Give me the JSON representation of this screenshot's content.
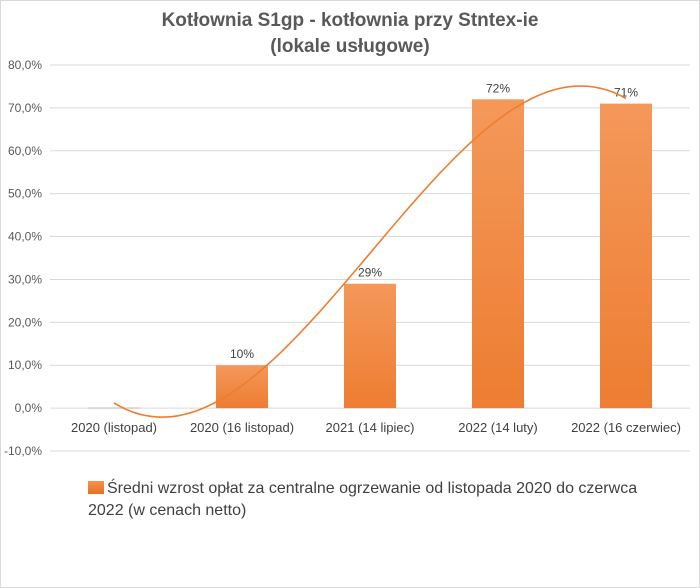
{
  "chart_data": {
    "type": "bar",
    "title": [
      "Kotłownia S1gp - kotłownia przy Stntex-ie",
      "(lokale usługowe)"
    ],
    "categories": [
      "2020 (listopad)",
      "2020 (16 listopad)",
      "2021 (14 lipiec)",
      "2022 (14 luty)",
      "2022 (16 czerwiec)"
    ],
    "series": [
      {
        "name": "Średni wzrost opłat za centralne ogrzewanie  od listopada 2020  do czerwca 2022 (w cenach netto)",
        "values": [
          0,
          10,
          29,
          72,
          71
        ],
        "data_labels": [
          "",
          "10%",
          "29%",
          "72%",
          "71%"
        ],
        "color": "#ed7d31"
      }
    ],
    "trendline": {
      "type": "polynomial",
      "color": "#ed7d31"
    },
    "ylim": [
      -10,
      80
    ],
    "yticks": [
      "-10,0%",
      "0,0%",
      "10,0%",
      "20,0%",
      "30,0%",
      "40,0%",
      "50,0%",
      "60,0%",
      "70,0%",
      "80,0%"
    ],
    "xlabel": "",
    "ylabel": "",
    "grid": true,
    "legend": "bottom"
  }
}
